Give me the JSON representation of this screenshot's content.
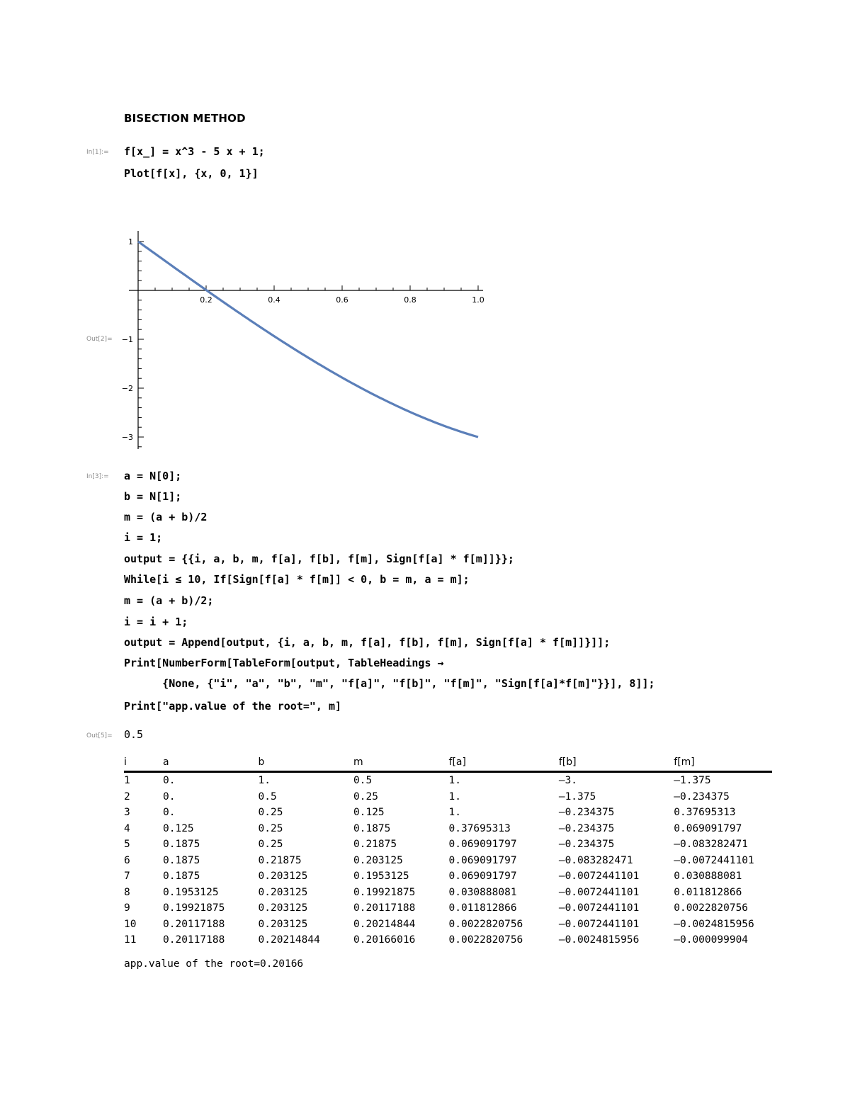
{
  "notebook": {
    "title": "BISECTION METHOD",
    "cells": [
      {
        "label": "In[1]:=",
        "lines": [
          "f[x_] = x^3 - 5 x + 1;",
          "Plot[f[x], {x, 0, 1}]"
        ]
      },
      {
        "label": "Out[2]=",
        "type": "plot"
      },
      {
        "label": "In[3]:=",
        "lines": [
          "a = N[0];",
          "b = N[1];",
          "m = (a + b)/2",
          "i = 1;",
          "output = {{i, a, b, m, f[a], f[b], f[m], Sign[f[a] * f[m]]}};",
          "While[i ≤ 10, If[Sign[f[a] * f[m]] < 0, b = m, a = m];",
          "m = (a + b)/2;",
          "i = i + 1;",
          "output = Append[output, {i, a, b, m, f[a], f[b], f[m], Sign[f[a] * f[m]]}]];",
          "Print[NumberForm[TableForm[output, TableHeadings →",
          "      {None, {\"i\", \"a\", \"b\", \"m\", \"f[a]\", \"f[b]\", \"f[m]\", \"Sign[f[a]*f[m]\"}}], 8]];",
          "Print[\"app.value of the root=\", m]"
        ]
      },
      {
        "label": "Out[5]=",
        "value": "0.5"
      }
    ],
    "table": {
      "headers": [
        "i",
        "a",
        "b",
        "m",
        "f[a]",
        "f[b]",
        "f[m]"
      ],
      "rows": [
        [
          "1",
          "0.",
          "1.",
          "0.5",
          "1.",
          "-3.",
          "-1.375"
        ],
        [
          "2",
          "0.",
          "0.5",
          "0.25",
          "1.",
          "-1.375",
          "-0.234375"
        ],
        [
          "3",
          "0.",
          "0.25",
          "0.125",
          "1.",
          "-0.234375",
          "0.37695313"
        ],
        [
          "4",
          "0.125",
          "0.25",
          "0.1875",
          "0.37695313",
          "-0.234375",
          "0.069091797"
        ],
        [
          "5",
          "0.1875",
          "0.25",
          "0.21875",
          "0.069091797",
          "-0.234375",
          "-0.083282471"
        ],
        [
          "6",
          "0.1875",
          "0.21875",
          "0.203125",
          "0.069091797",
          "-0.083282471",
          "-0.0072441101"
        ],
        [
          "7",
          "0.1875",
          "0.203125",
          "0.1953125",
          "0.069091797",
          "-0.0072441101",
          "0.030888081"
        ],
        [
          "8",
          "0.1953125",
          "0.203125",
          "0.19921875",
          "0.030888081",
          "-0.0072441101",
          "0.011812866"
        ],
        [
          "9",
          "0.19921875",
          "0.203125",
          "0.20117188",
          "0.011812866",
          "-0.0072441101",
          "0.0022820756"
        ],
        [
          "10",
          "0.20117188",
          "0.203125",
          "0.20214844",
          "0.0022820756",
          "-0.0072441101",
          "-0.0024815956"
        ],
        [
          "11",
          "0.20117188",
          "0.20214844",
          "0.20166016",
          "0.0022820756",
          "-0.0024815956",
          "-0.000099904"
        ]
      ]
    },
    "print_output": "app.value of the root=0.20166"
  },
  "chart_data": {
    "type": "line",
    "title": "",
    "function": "x^3 - 5x + 1",
    "xlabel": "",
    "ylabel": "",
    "xlim": [
      0,
      1
    ],
    "ylim": [
      -3,
      1
    ],
    "x_ticks": [
      "0.2",
      "0.4",
      "0.6",
      "0.8",
      "1.0"
    ],
    "y_ticks": [
      "1",
      "-1",
      "-2",
      "-3"
    ],
    "series": [
      {
        "name": "f[x]",
        "color": "#5b7fb9",
        "x": [
          0,
          0.1,
          0.2,
          0.3,
          0.4,
          0.5,
          0.6,
          0.7,
          0.8,
          0.9,
          1.0
        ],
        "y": [
          1,
          0.501,
          0.008,
          -0.473,
          -0.936,
          -1.375,
          -1.784,
          -2.157,
          -2.488,
          -2.771,
          -3.0
        ]
      }
    ],
    "grid": false
  }
}
